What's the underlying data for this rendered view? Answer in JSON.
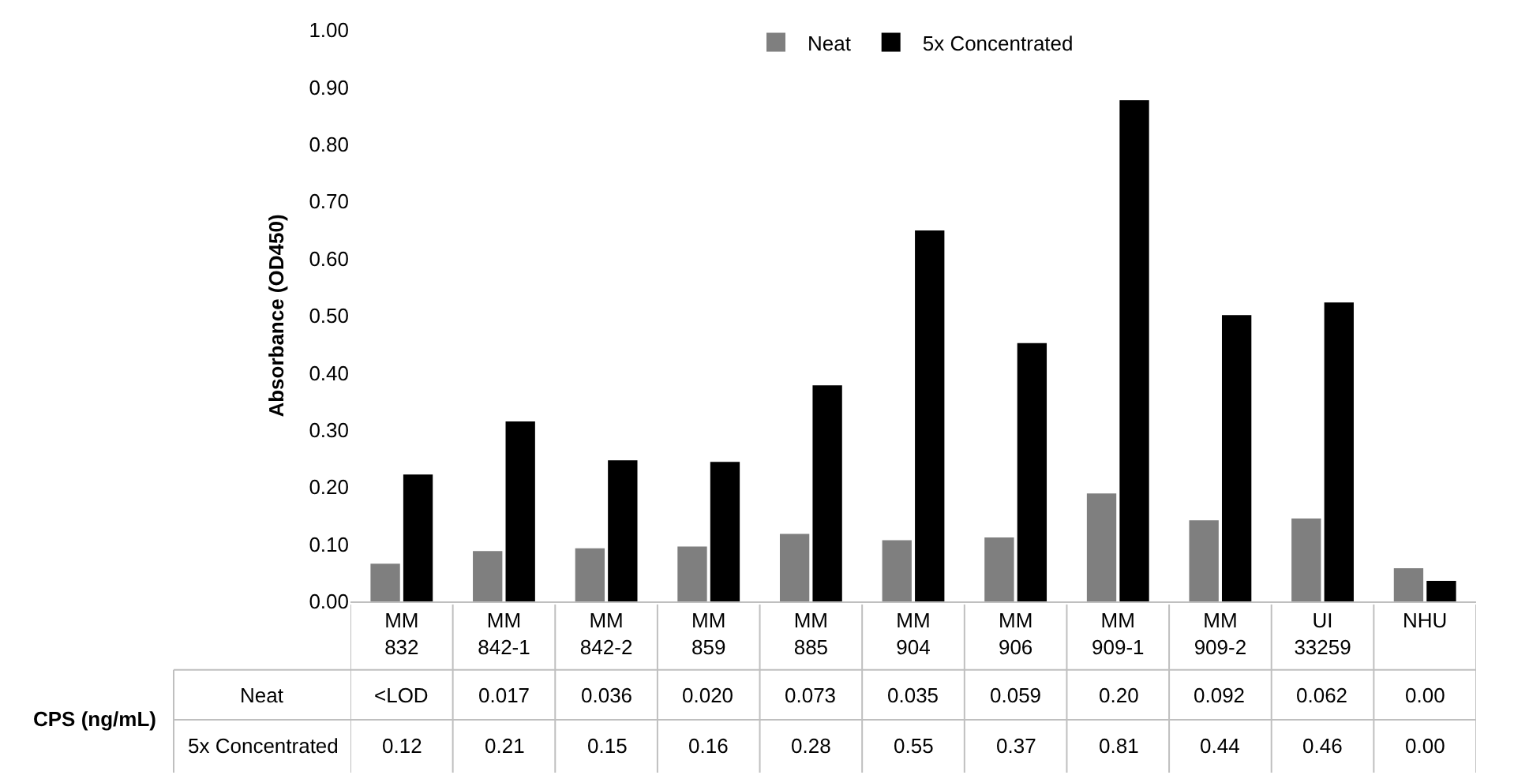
{
  "chart_data": {
    "type": "bar",
    "ylabel": "Absorbance (OD450)",
    "categories": [
      "MM 832",
      "MM 842-1",
      "MM 842-2",
      "MM 859",
      "MM 885",
      "MM 904",
      "MM 906",
      "MM 909-1",
      "MM 909-2",
      "UI 33259",
      "NHU"
    ],
    "series": [
      {
        "name": "Neat",
        "color": "#7f7f7f",
        "values": [
          0.066,
          0.088,
          0.093,
          0.096,
          0.118,
          0.107,
          0.112,
          0.189,
          0.142,
          0.145,
          0.058
        ]
      },
      {
        "name": "5x Concentrated",
        "color": "#000000",
        "values": [
          0.222,
          0.315,
          0.247,
          0.244,
          0.378,
          0.649,
          0.452,
          0.877,
          0.501,
          0.523,
          0.036
        ]
      }
    ],
    "ylim": [
      0,
      1
    ],
    "yticks": [
      {
        "value": 0,
        "label": "0.00"
      },
      {
        "value": 0.1,
        "label": "0.10"
      },
      {
        "value": 0.2,
        "label": "0.20"
      },
      {
        "value": 0.3,
        "label": "0.30"
      },
      {
        "value": 0.4,
        "label": "0.40"
      },
      {
        "value": 0.5,
        "label": "0.50"
      },
      {
        "value": 0.6,
        "label": "0.60"
      },
      {
        "value": 0.7,
        "label": "0.70"
      },
      {
        "value": 0.8,
        "label": "0.80"
      },
      {
        "value": 0.9,
        "label": "0.90"
      },
      {
        "value": 1,
        "label": "1.00"
      }
    ],
    "grid": false,
    "legend": "top",
    "annotations": [
      "CPS (ng/mL)",
      "<LOD",
      "0.017",
      "0.036",
      "0.020",
      "0.073",
      "0.035",
      "0.059",
      "0.20",
      "0.092",
      "0.062",
      "0.00",
      "0.12",
      "0.21",
      "0.15",
      "0.16",
      "0.28",
      "0.55",
      "0.37",
      "0.81",
      "0.44",
      "0.46",
      "0.00"
    ]
  }
}
